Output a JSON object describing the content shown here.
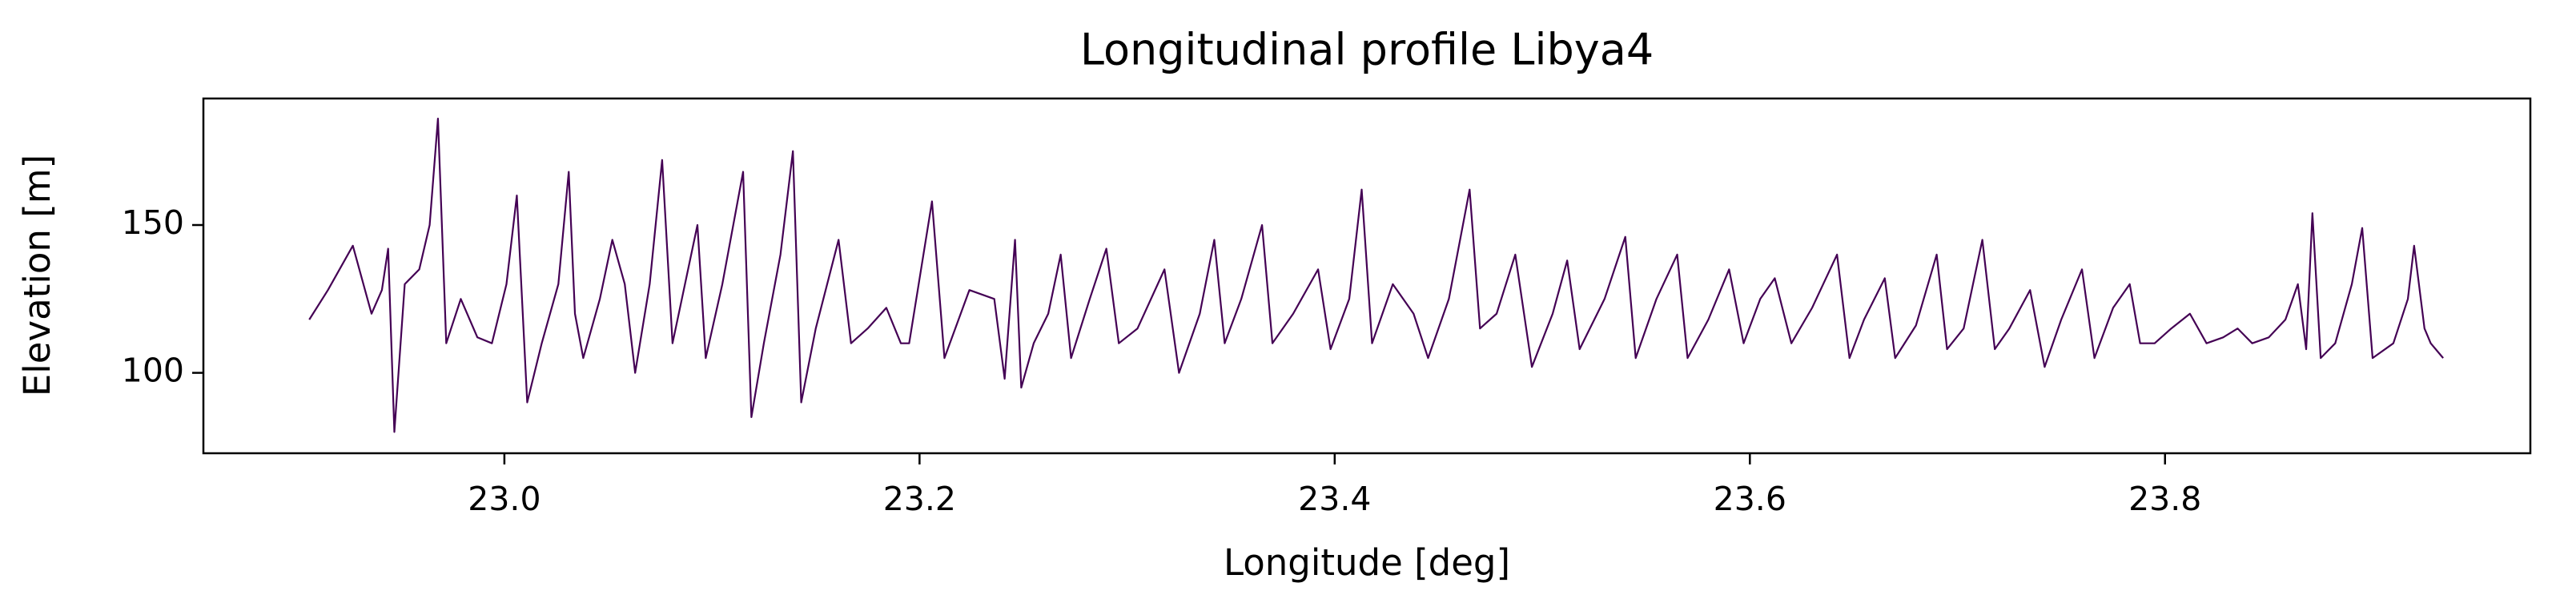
{
  "chart_data": {
    "type": "line",
    "title": "Longitudinal profile Libya4",
    "x_label": "Longitude [deg]",
    "y_label": "Elevation [m]",
    "xlim": [
      22.855,
      23.976
    ],
    "ylim": [
      72.8,
      192.8
    ],
    "xticks": [
      {
        "value": 23,
        "label": "23.0"
      },
      23.2,
      23.4,
      23.6,
      23.8
    ],
    "yticks": [
      100,
      150
    ],
    "grid": false,
    "series": [
      {
        "color": "#440154",
        "x": [
          22.906,
          22.915,
          22.927,
          22.936,
          22.941,
          22.944,
          22.947,
          22.952,
          22.959,
          22.964,
          22.968,
          22.972,
          22.979,
          22.987,
          22.994,
          23.001,
          23.006,
          23.011,
          23.018,
          23.026,
          23.031,
          23.034,
          23.038,
          23.046,
          23.052,
          23.058,
          23.063,
          23.07,
          23.076,
          23.081,
          23.093,
          23.097,
          23.105,
          23.115,
          23.119,
          23.125,
          23.133,
          23.139,
          23.143,
          23.15,
          23.161,
          23.167,
          23.175,
          23.184,
          23.191,
          23.195,
          23.206,
          23.212,
          23.224,
          23.236,
          23.241,
          23.246,
          23.249,
          23.255,
          23.262,
          23.268,
          23.273,
          23.282,
          23.29,
          23.296,
          23.305,
          23.318,
          23.325,
          23.335,
          23.342,
          23.347,
          23.355,
          23.365,
          23.37,
          23.38,
          23.392,
          23.398,
          23.407,
          23.413,
          23.418,
          23.428,
          23.438,
          23.445,
          23.455,
          23.465,
          23.47,
          23.478,
          23.487,
          23.495,
          23.505,
          23.512,
          23.518,
          23.53,
          23.54,
          23.545,
          23.555,
          23.565,
          23.57,
          23.58,
          23.59,
          23.597,
          23.605,
          23.612,
          23.62,
          23.63,
          23.642,
          23.648,
          23.655,
          23.665,
          23.67,
          23.68,
          23.69,
          23.695,
          23.703,
          23.712,
          23.718,
          23.725,
          23.735,
          23.742,
          23.75,
          23.76,
          23.766,
          23.775,
          23.783,
          23.788,
          23.795,
          23.803,
          23.812,
          23.82,
          23.828,
          23.835,
          23.842,
          23.85,
          23.858,
          23.864,
          23.868,
          23.871,
          23.875,
          23.882,
          23.89,
          23.895,
          23.9,
          23.91,
          23.917,
          23.92,
          23.925,
          23.928,
          23.934
        ],
        "values": [
          118,
          128,
          143,
          120,
          128,
          142,
          80,
          130,
          135,
          150,
          186,
          110,
          125,
          112,
          110,
          130,
          160,
          90,
          110,
          130,
          168,
          120,
          105,
          125,
          145,
          130,
          100,
          130,
          172,
          110,
          150,
          105,
          130,
          168,
          85,
          110,
          140,
          175,
          90,
          115,
          145,
          110,
          115,
          122,
          110,
          110,
          158,
          105,
          128,
          125,
          98,
          145,
          95,
          110,
          120,
          140,
          105,
          125,
          142,
          110,
          115,
          135,
          100,
          120,
          145,
          110,
          125,
          150,
          110,
          120,
          135,
          108,
          125,
          162,
          110,
          130,
          120,
          105,
          125,
          162,
          115,
          120,
          140,
          102,
          120,
          138,
          108,
          125,
          146,
          105,
          125,
          140,
          105,
          118,
          135,
          110,
          125,
          132,
          110,
          122,
          140,
          105,
          118,
          132,
          105,
          116,
          140,
          108,
          115,
          145,
          108,
          115,
          128,
          102,
          118,
          135,
          105,
          122,
          130,
          110,
          110,
          115,
          120,
          110,
          112,
          115,
          110,
          112,
          118,
          130,
          108,
          154,
          105,
          110,
          130,
          149,
          105,
          110,
          125,
          143,
          115,
          110,
          105
        ]
      }
    ]
  }
}
